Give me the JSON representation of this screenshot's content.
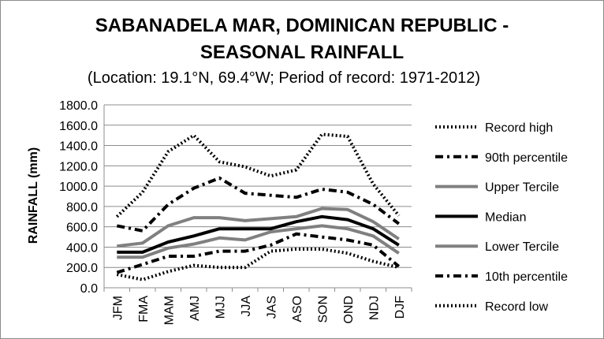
{
  "chart_data": {
    "type": "line",
    "title_line1": "SABANADELA MAR, DOMINICAN REPUBLIC -",
    "title_line2": "SEASONAL RAINFALL",
    "subtitle": "(Location: 19.1°N, 69.4°W; Period of record: 1971-2012)",
    "xlabel": "",
    "ylabel": "RAINFALL (mm)",
    "ylim": [
      0,
      1800
    ],
    "yticks": [
      "0.0",
      "200.0",
      "400.0",
      "600.0",
      "800.0",
      "1000.0",
      "1200.0",
      "1400.0",
      "1600.0",
      "1800.0"
    ],
    "grid": true,
    "legend_position": "right",
    "categories": [
      "JFM",
      "FMA",
      "MAM",
      "AMJ",
      "MJJ",
      "JJA",
      "JAS",
      "ASO",
      "SON",
      "OND",
      "NDJ",
      "DJF"
    ],
    "series": [
      {
        "name": "Record high",
        "color": "#000000",
        "style": "dotted",
        "values": [
          700,
          940,
          1340,
          1500,
          1240,
          1190,
          1100,
          1160,
          1510,
          1490,
          1020,
          710
        ]
      },
      {
        "name": "90th percentile",
        "color": "#000000",
        "style": "dashdot",
        "values": [
          610,
          560,
          820,
          980,
          1080,
          930,
          910,
          890,
          970,
          940,
          820,
          630
        ]
      },
      {
        "name": "Upper Tercile",
        "color": "#808080",
        "style": "solid",
        "values": [
          410,
          440,
          610,
          690,
          690,
          660,
          680,
          700,
          780,
          770,
          650,
          480
        ]
      },
      {
        "name": "Median",
        "color": "#000000",
        "style": "solid",
        "values": [
          350,
          350,
          450,
          510,
          580,
          580,
          580,
          650,
          700,
          670,
          580,
          420
        ]
      },
      {
        "name": "Lower Tercile",
        "color": "#808080",
        "style": "solid",
        "values": [
          300,
          300,
          390,
          430,
          490,
          470,
          550,
          580,
          610,
          580,
          510,
          340
        ]
      },
      {
        "name": "10th percentile",
        "color": "#000000",
        "style": "dashdot",
        "values": [
          150,
          230,
          310,
          310,
          360,
          360,
          420,
          530,
          500,
          470,
          420,
          210
        ]
      },
      {
        "name": "Record low",
        "color": "#000000",
        "style": "dotted",
        "values": [
          130,
          80,
          160,
          220,
          200,
          200,
          360,
          380,
          380,
          340,
          260,
          200
        ]
      }
    ]
  }
}
